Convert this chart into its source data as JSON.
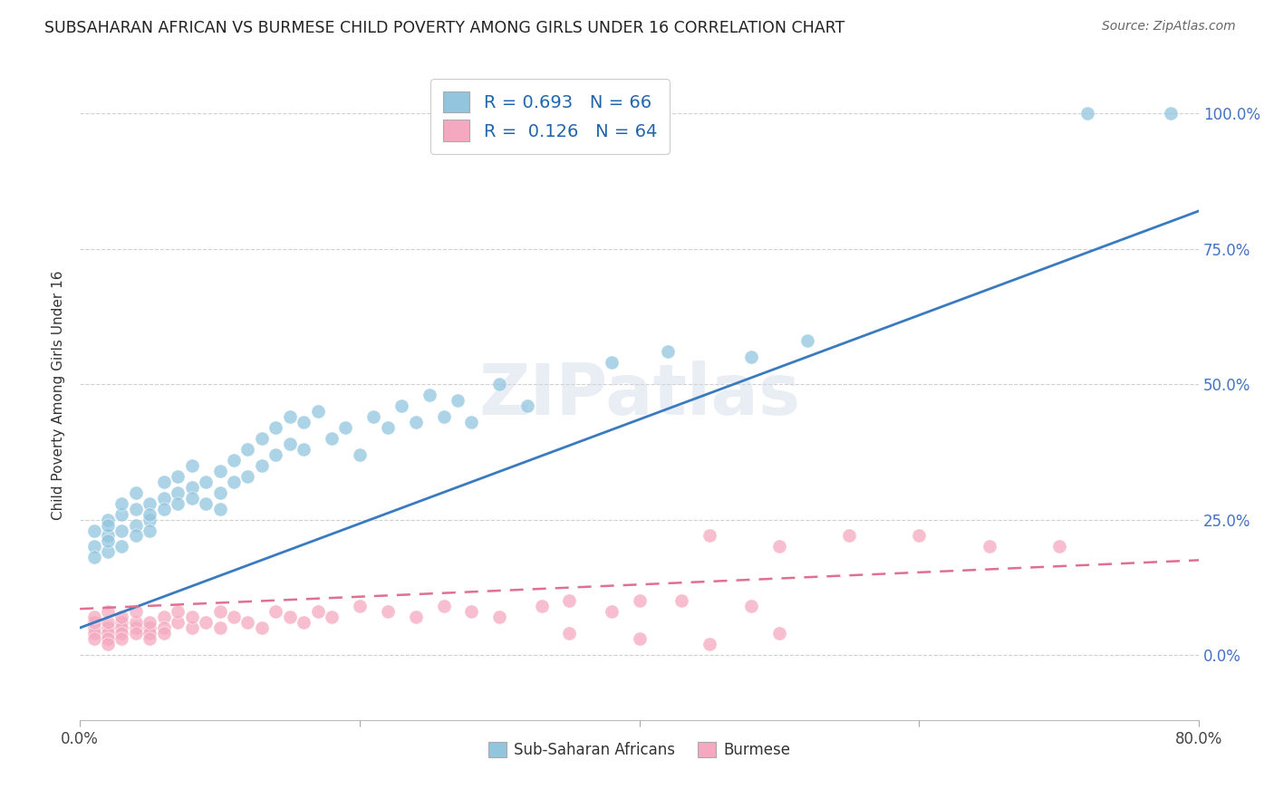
{
  "title": "SUBSAHARAN AFRICAN VS BURMESE CHILD POVERTY AMONG GIRLS UNDER 16 CORRELATION CHART",
  "source": "Source: ZipAtlas.com",
  "ylabel": "Child Poverty Among Girls Under 16",
  "ytick_labels": [
    "0.0%",
    "25.0%",
    "50.0%",
    "75.0%",
    "100.0%"
  ],
  "ytick_values": [
    0.0,
    0.25,
    0.5,
    0.75,
    1.0
  ],
  "xlim": [
    0.0,
    0.8
  ],
  "ylim": [
    -0.12,
    1.08
  ],
  "blue_color": "#92c5de",
  "pink_color": "#f4a9c0",
  "blue_line_color": "#3a7abf",
  "pink_line_color": "#e07090",
  "legend_R1": "R = 0.693",
  "legend_N1": "N = 66",
  "legend_R2": "R =  0.126",
  "legend_N2": "N = 64",
  "watermark": "ZIPatlas",
  "blue_line_x0": 0.0,
  "blue_line_y0": 0.05,
  "blue_line_x1": 0.8,
  "blue_line_y1": 0.82,
  "pink_line_x0": 0.0,
  "pink_line_y0": 0.085,
  "pink_line_x1": 0.8,
  "pink_line_y1": 0.175,
  "blue_scatter_x": [
    0.01,
    0.01,
    0.01,
    0.02,
    0.02,
    0.02,
    0.02,
    0.02,
    0.03,
    0.03,
    0.03,
    0.03,
    0.04,
    0.04,
    0.04,
    0.04,
    0.05,
    0.05,
    0.05,
    0.05,
    0.06,
    0.06,
    0.06,
    0.07,
    0.07,
    0.07,
    0.08,
    0.08,
    0.08,
    0.09,
    0.09,
    0.1,
    0.1,
    0.1,
    0.11,
    0.11,
    0.12,
    0.12,
    0.13,
    0.13,
    0.14,
    0.14,
    0.15,
    0.15,
    0.16,
    0.16,
    0.17,
    0.18,
    0.19,
    0.2,
    0.21,
    0.22,
    0.23,
    0.24,
    0.25,
    0.26,
    0.27,
    0.28,
    0.3,
    0.32,
    0.38,
    0.42,
    0.48,
    0.52,
    0.72,
    0.78
  ],
  "blue_scatter_y": [
    0.2,
    0.23,
    0.18,
    0.22,
    0.25,
    0.19,
    0.21,
    0.24,
    0.23,
    0.26,
    0.2,
    0.28,
    0.24,
    0.27,
    0.22,
    0.3,
    0.25,
    0.28,
    0.23,
    0.26,
    0.29,
    0.27,
    0.32,
    0.3,
    0.28,
    0.33,
    0.31,
    0.29,
    0.35,
    0.32,
    0.28,
    0.34,
    0.3,
    0.27,
    0.36,
    0.32,
    0.38,
    0.33,
    0.4,
    0.35,
    0.42,
    0.37,
    0.44,
    0.39,
    0.43,
    0.38,
    0.45,
    0.4,
    0.42,
    0.37,
    0.44,
    0.42,
    0.46,
    0.43,
    0.48,
    0.44,
    0.47,
    0.43,
    0.5,
    0.46,
    0.54,
    0.56,
    0.55,
    0.58,
    1.0,
    1.0
  ],
  "pink_scatter_x": [
    0.01,
    0.01,
    0.01,
    0.01,
    0.01,
    0.02,
    0.02,
    0.02,
    0.02,
    0.02,
    0.02,
    0.03,
    0.03,
    0.03,
    0.03,
    0.03,
    0.04,
    0.04,
    0.04,
    0.04,
    0.05,
    0.05,
    0.05,
    0.05,
    0.06,
    0.06,
    0.06,
    0.07,
    0.07,
    0.08,
    0.08,
    0.09,
    0.1,
    0.1,
    0.11,
    0.12,
    0.13,
    0.14,
    0.15,
    0.16,
    0.17,
    0.18,
    0.2,
    0.22,
    0.24,
    0.26,
    0.28,
    0.3,
    0.33,
    0.35,
    0.38,
    0.4,
    0.45,
    0.5,
    0.55,
    0.6,
    0.65,
    0.7,
    0.43,
    0.48,
    0.35,
    0.4,
    0.45,
    0.5
  ],
  "pink_scatter_y": [
    0.05,
    0.04,
    0.06,
    0.03,
    0.07,
    0.05,
    0.04,
    0.06,
    0.03,
    0.08,
    0.02,
    0.06,
    0.05,
    0.04,
    0.07,
    0.03,
    0.05,
    0.06,
    0.04,
    0.08,
    0.05,
    0.04,
    0.06,
    0.03,
    0.07,
    0.05,
    0.04,
    0.06,
    0.08,
    0.05,
    0.07,
    0.06,
    0.08,
    0.05,
    0.07,
    0.06,
    0.05,
    0.08,
    0.07,
    0.06,
    0.08,
    0.07,
    0.09,
    0.08,
    0.07,
    0.09,
    0.08,
    0.07,
    0.09,
    0.1,
    0.08,
    0.1,
    0.22,
    0.2,
    0.22,
    0.22,
    0.2,
    0.2,
    0.1,
    0.09,
    0.04,
    0.03,
    0.02,
    0.04
  ]
}
